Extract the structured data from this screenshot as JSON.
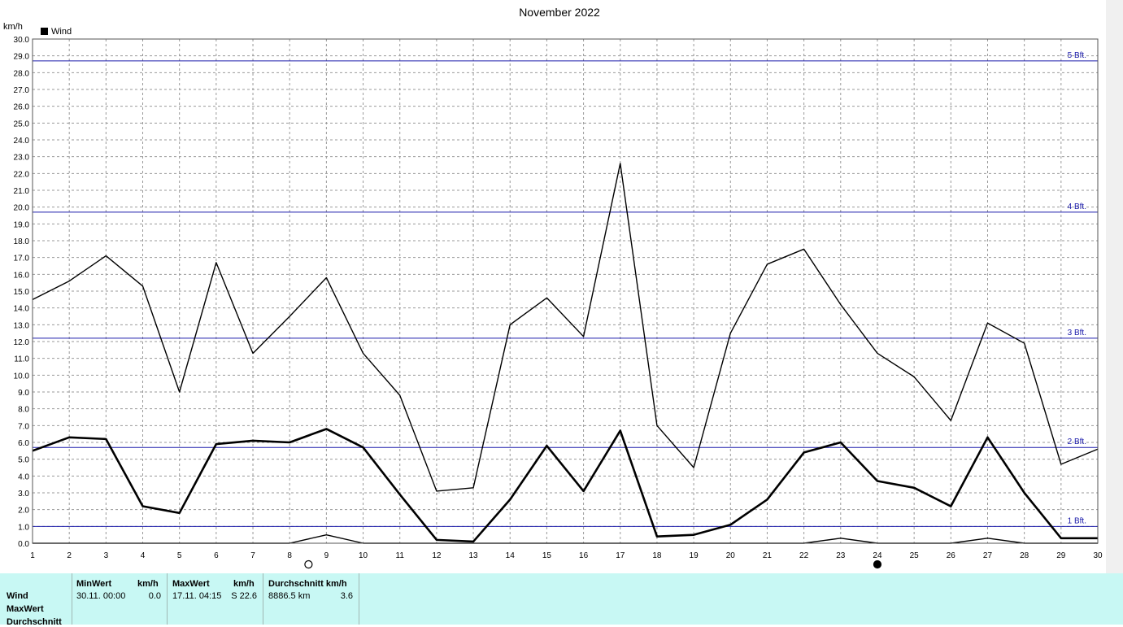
{
  "chart_data": {
    "type": "line",
    "title": "November 2022",
    "ylabel": "km/h",
    "legend": {
      "label": "Wind",
      "position": "top-left"
    },
    "ylim": [
      0,
      30
    ],
    "xlim": [
      1,
      30
    ],
    "x": [
      1,
      2,
      3,
      4,
      5,
      6,
      7,
      8,
      9,
      10,
      11,
      12,
      13,
      14,
      15,
      16,
      17,
      18,
      19,
      20,
      21,
      22,
      23,
      24,
      25,
      26,
      27,
      28,
      29,
      30
    ],
    "y_ticks": [
      "0.0",
      "1.0",
      "2.0",
      "3.0",
      "4.0",
      "5.0",
      "6.0",
      "7.0",
      "8.0",
      "9.0",
      "10.0",
      "11.0",
      "12.0",
      "13.0",
      "14.0",
      "15.0",
      "16.0",
      "17.0",
      "18.0",
      "19.0",
      "20.0",
      "21.0",
      "22.0",
      "23.0",
      "24.0",
      "25.0",
      "26.0",
      "27.0",
      "28.0",
      "29.0",
      "30.0"
    ],
    "x_ticks": [
      "1",
      "2",
      "3",
      "4",
      "5",
      "6",
      "7",
      "8",
      "9",
      "10",
      "11",
      "12",
      "13",
      "14",
      "15",
      "16",
      "17",
      "18",
      "19",
      "20",
      "21",
      "22",
      "23",
      "24",
      "25",
      "26",
      "27",
      "28",
      "29",
      "30"
    ],
    "grid": true,
    "series": [
      {
        "style": "max",
        "values": [
          14.5,
          15.6,
          17.1,
          15.3,
          9.0,
          16.7,
          11.3,
          13.5,
          15.8,
          11.3,
          8.8,
          3.1,
          3.3,
          13.0,
          14.6,
          12.3,
          22.6,
          7.0,
          4.5,
          12.5,
          16.6,
          17.5,
          14.2,
          11.3,
          9.9,
          7.3,
          13.1,
          11.9,
          4.7,
          5.6
        ]
      },
      {
        "style": "avg",
        "values": [
          5.5,
          6.3,
          6.2,
          2.2,
          1.8,
          5.9,
          6.1,
          6.0,
          6.8,
          5.7,
          2.9,
          0.2,
          0.1,
          2.6,
          5.8,
          3.1,
          6.7,
          0.4,
          0.5,
          1.1,
          2.6,
          5.4,
          6.0,
          3.7,
          3.3,
          2.2,
          6.3,
          3.0,
          0.3,
          0.3
        ]
      },
      {
        "style": "min",
        "values": [
          0,
          0,
          0,
          0,
          0,
          0,
          0,
          0,
          0.5,
          0,
          0,
          0,
          0,
          0,
          0,
          0,
          0,
          0,
          0,
          0,
          0,
          0,
          0.3,
          0,
          0,
          0,
          0.3,
          0,
          0,
          0
        ]
      }
    ],
    "reference_lines": [
      {
        "label": "1 Bft.",
        "value": 1.0
      },
      {
        "label": "2 Bft.",
        "value": 5.7
      },
      {
        "label": "3 Bft.",
        "value": 12.2
      },
      {
        "label": "4 Bft.",
        "value": 19.7
      },
      {
        "label": "5 Bft.",
        "value": 28.7
      }
    ],
    "moon_phases": [
      {
        "x": 9,
        "phase": "full"
      },
      {
        "x": 24,
        "phase": "new"
      }
    ],
    "colors": {
      "series": "#000000",
      "reference": "#1a1aaa",
      "grid": "#999999",
      "footer_bg": "#c8f8f4"
    }
  },
  "footer": {
    "row_labels": [
      "Wind",
      "MaxWert",
      "Durchschnitt"
    ],
    "min": {
      "header": "MinWert",
      "unit": "km/h",
      "time": "30.11.  00:00",
      "value": "0.0"
    },
    "max": {
      "header": "MaxWert",
      "unit": "km/h",
      "time": "17.11.  04:15",
      "value": "S 22.6"
    },
    "avg": {
      "header": "Durchschnitt km/h",
      "distance": "8886.5 km",
      "value": "3.6"
    }
  }
}
